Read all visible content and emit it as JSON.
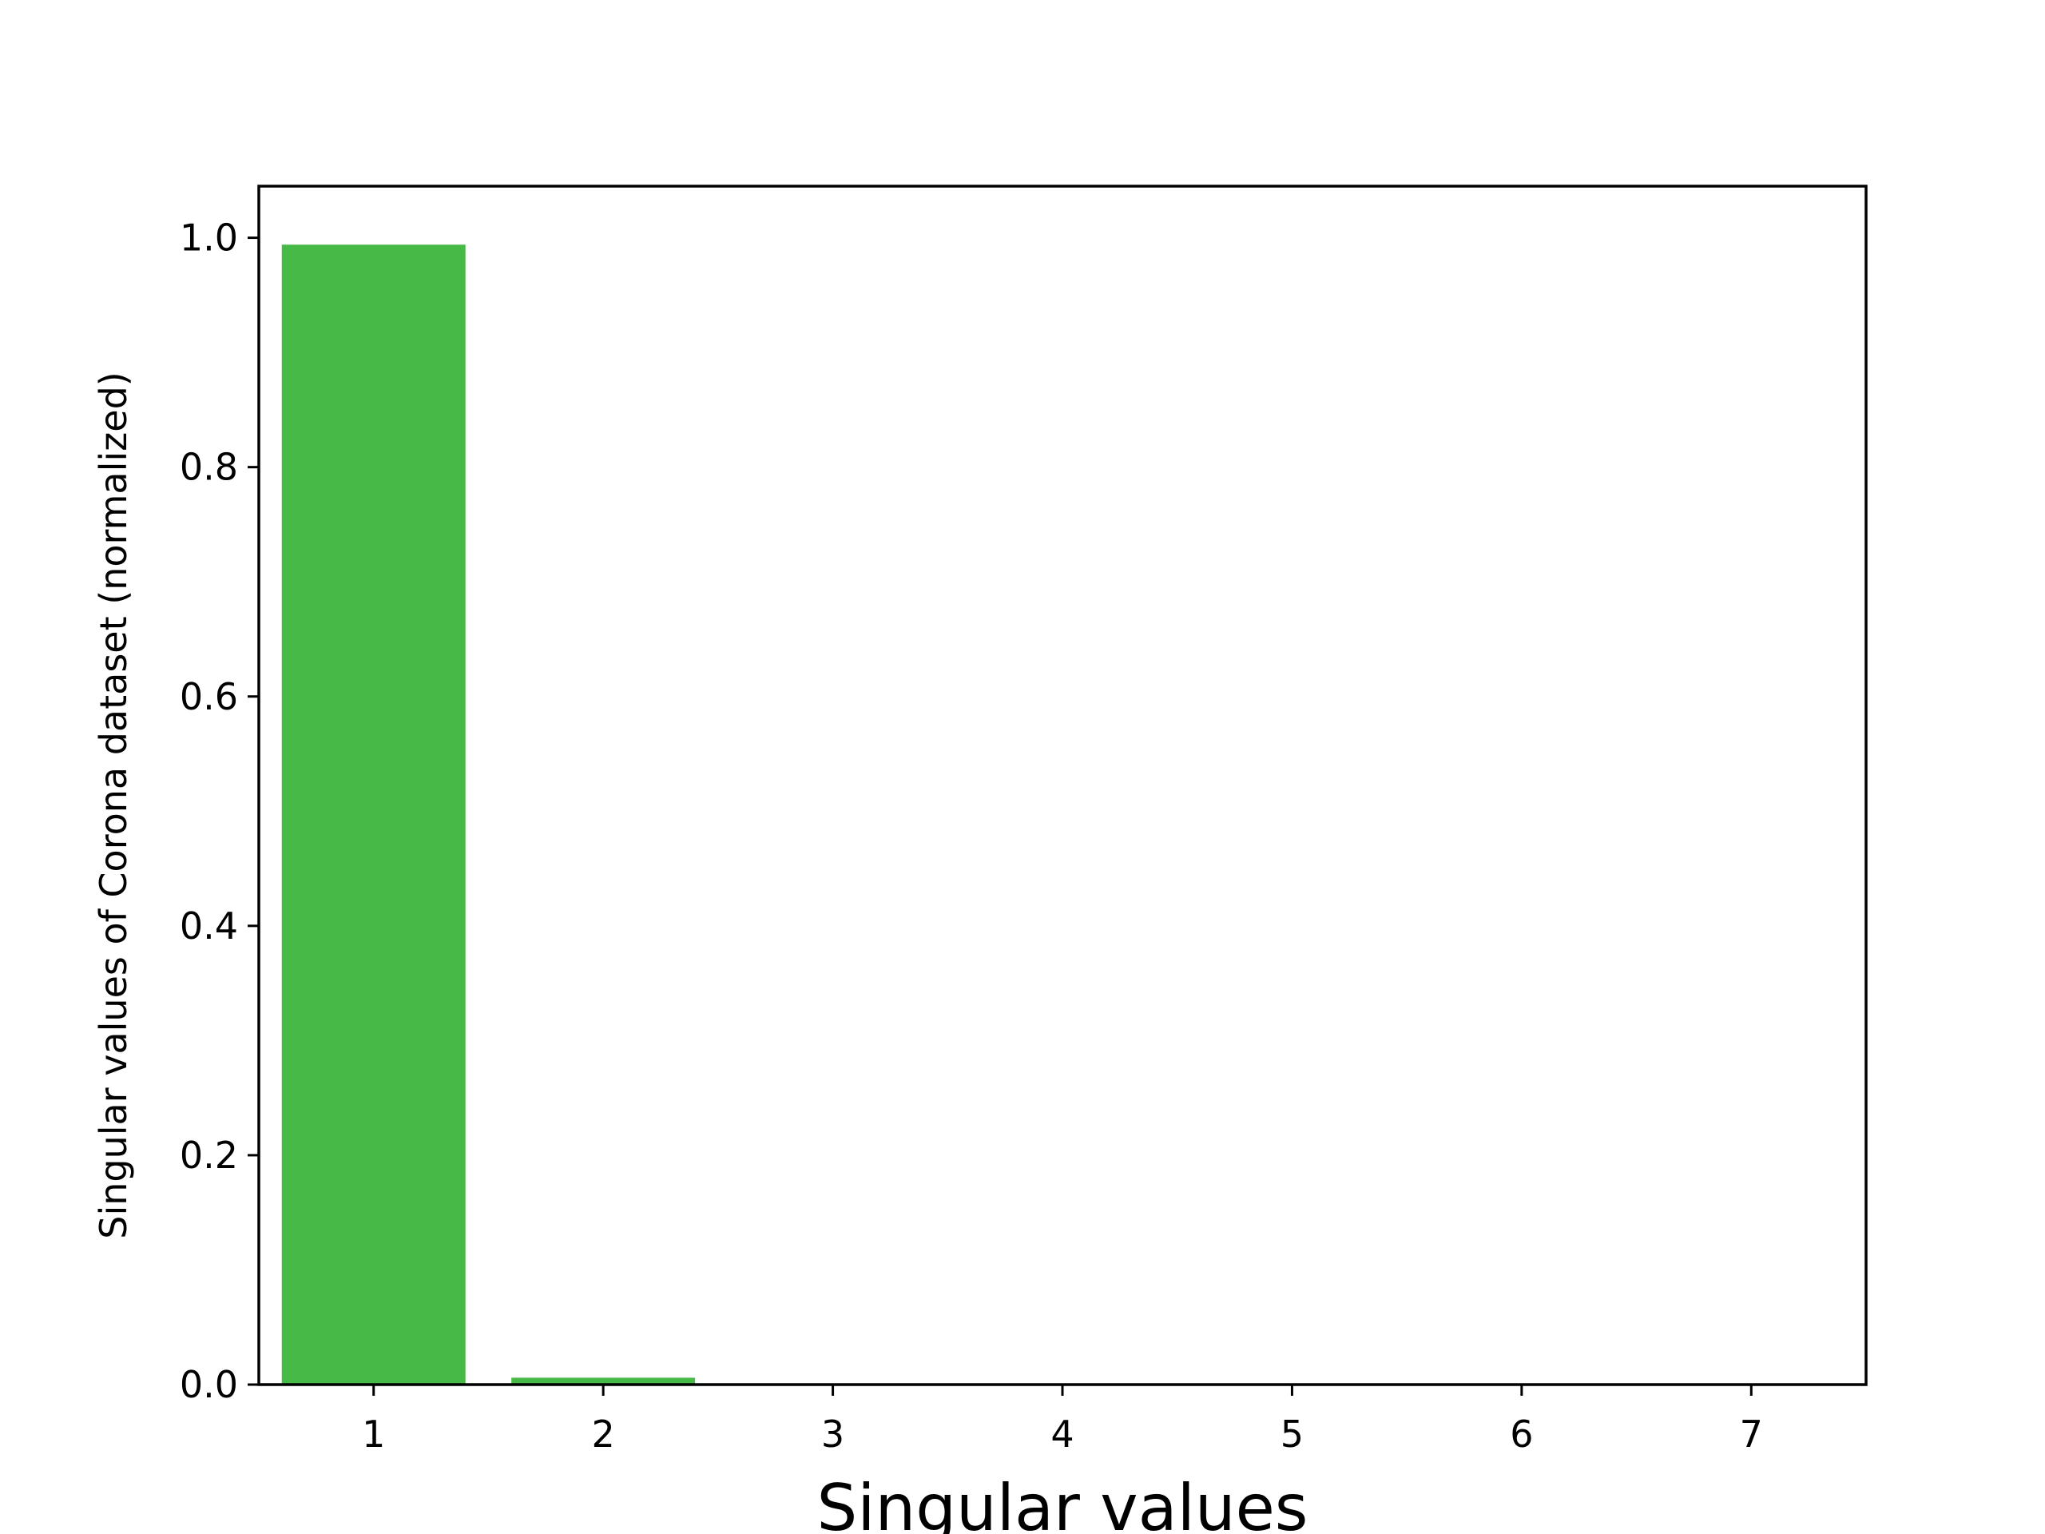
{
  "chart_data": {
    "type": "bar",
    "title": "",
    "xlabel": "Singular values",
    "ylabel": "Singular values of Corona dataset (normalized)",
    "categories": [
      "1",
      "2",
      "3",
      "4",
      "5",
      "6",
      "7"
    ],
    "x": [
      1,
      2,
      3,
      4,
      5,
      6,
      7
    ],
    "values": [
      0.994,
      0.006,
      0.0,
      0.0,
      0.0,
      0.0,
      0.0
    ],
    "bar_color": "#47b946",
    "xlim": [
      0.5,
      7.5
    ],
    "ylim": [
      0,
      1.045
    ],
    "y_ticks": [
      0.0,
      0.2,
      0.4,
      0.6,
      0.8,
      1.0
    ],
    "y_tick_labels": [
      "0.0",
      "0.2",
      "0.4",
      "0.6",
      "0.8",
      "1.0"
    ],
    "grid": false,
    "legend": "none"
  }
}
